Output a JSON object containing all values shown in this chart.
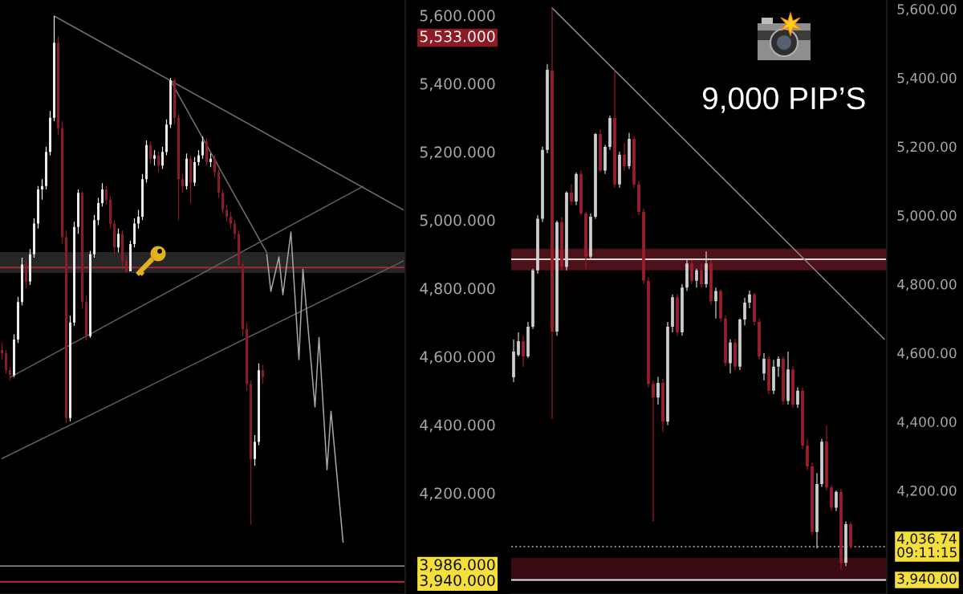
{
  "chart_data": [
    {
      "type": "candlestick",
      "tick_labels": "y",
      "categories": [
        null,
        null,
        null,
        null,
        null,
        null,
        null,
        null,
        null,
        null,
        null,
        null,
        null,
        null,
        null,
        null,
        null,
        null,
        null,
        null,
        null,
        null,
        null,
        null,
        null,
        null,
        null,
        null,
        null,
        null,
        null,
        null,
        null,
        null,
        null,
        null,
        null,
        null,
        null,
        null,
        null,
        null,
        null,
        null,
        null,
        null,
        null,
        null,
        null,
        null,
        null,
        null,
        null,
        null,
        null,
        null,
        null,
        null,
        null,
        null,
        null,
        null,
        null,
        null,
        null,
        null,
        null,
        null,
        null,
        null,
        null,
        null,
        null,
        null,
        null,
        null,
        null,
        null,
        null,
        null,
        null,
        null,
        null,
        null,
        null,
        null,
        null,
        null,
        null,
        null,
        null,
        null,
        null,
        null,
        null,
        null,
        null,
        null,
        null,
        null,
        null
      ],
      "ohlc": [
        [
          4620,
          4640,
          4590,
          4609
        ],
        [
          4609,
          4620,
          4550,
          4560
        ],
        [
          4560,
          4570,
          4530,
          4545
        ],
        [
          4545,
          4665,
          4540,
          4650
        ],
        [
          4650,
          4775,
          4640,
          4760
        ],
        [
          4760,
          4890,
          4750,
          4870
        ],
        [
          4870,
          4885,
          4800,
          4820
        ],
        [
          4820,
          4915,
          4810,
          4900
        ],
        [
          4900,
          5005,
          4890,
          4990
        ],
        [
          4990,
          5100,
          4975,
          5090
        ],
        [
          5090,
          5120,
          5060,
          5100
        ],
        [
          5100,
          5215,
          5090,
          5200
        ],
        [
          5200,
          5320,
          5190,
          5300
        ],
        [
          5300,
          5598,
          5290,
          5520
        ],
        [
          5520,
          5540,
          5250,
          5270
        ],
        [
          5270,
          5290,
          4930,
          4950
        ],
        [
          4950,
          4970,
          4405,
          4420
        ],
        [
          4420,
          4720,
          4410,
          4700
        ],
        [
          4700,
          4995,
          4690,
          4980
        ],
        [
          4980,
          5090,
          4960,
          5080
        ],
        [
          5080,
          5085,
          4740,
          4760
        ],
        [
          4760,
          4780,
          4650,
          4660
        ],
        [
          4660,
          4910,
          4655,
          4900
        ],
        [
          4900,
          5015,
          4890,
          5000
        ],
        [
          5000,
          5065,
          4985,
          5050
        ],
        [
          5050,
          5108,
          5040,
          5090
        ],
        [
          5090,
          5100,
          5045,
          5060
        ],
        [
          5060,
          5070,
          4975,
          4990
        ],
        [
          4990,
          5000,
          4900,
          4920
        ],
        [
          4920,
          4975,
          4905,
          4960
        ],
        [
          4960,
          4970,
          4865,
          4880
        ],
        [
          4880,
          4895,
          4845,
          4850
        ],
        [
          4850,
          4940,
          4850,
          4930
        ],
        [
          4930,
          5005,
          4920,
          4990
        ],
        [
          4990,
          5030,
          4975,
          5010
        ],
        [
          5010,
          5135,
          5000,
          5120
        ],
        [
          5120,
          5233,
          5110,
          5220
        ],
        [
          5220,
          5230,
          5165,
          5180
        ],
        [
          5180,
          5205,
          5160,
          5190
        ],
        [
          5190,
          5200,
          5140,
          5160
        ],
        [
          5160,
          5215,
          5150,
          5200
        ],
        [
          5200,
          5295,
          5190,
          5280
        ],
        [
          5280,
          5417,
          5270,
          5410
        ],
        [
          5410,
          5415,
          5280,
          5300
        ],
        [
          5300,
          5310,
          5000,
          5120
        ],
        [
          5120,
          5135,
          5080,
          5100
        ],
        [
          5100,
          5195,
          5090,
          5180
        ],
        [
          5180,
          5190,
          5050,
          5110
        ],
        [
          5110,
          5185,
          5100,
          5170
        ],
        [
          5170,
          5205,
          5160,
          5190
        ],
        [
          5190,
          5245,
          5180,
          5230
        ],
        [
          5230,
          5240,
          5160,
          5170
        ],
        [
          5170,
          5195,
          5155,
          5180
        ],
        [
          5180,
          5190,
          5125,
          5140
        ],
        [
          5140,
          5150,
          5065,
          5080
        ],
        [
          5080,
          5090,
          5020,
          5030
        ],
        [
          5030,
          5045,
          4995,
          5010
        ],
        [
          5010,
          5025,
          4975,
          4990
        ],
        [
          4990,
          5000,
          4945,
          4960
        ],
        [
          4960,
          4970,
          4860,
          4870
        ],
        [
          4870,
          4880,
          4660,
          4680
        ],
        [
          4680,
          4700,
          4500,
          4520
        ],
        [
          4520,
          4530,
          4108,
          4300
        ],
        [
          4300,
          4370,
          4280,
          4350
        ],
        [
          4350,
          4580,
          4340,
          4560
        ],
        [
          4560,
          4575,
          4520,
          4540
        ],
        null,
        null,
        null,
        null,
        null,
        null,
        null,
        null,
        null,
        null,
        null,
        null,
        null,
        null,
        null,
        null,
        null,
        null,
        null,
        null,
        null,
        null,
        null,
        null,
        null,
        null,
        null,
        null,
        null,
        null,
        null,
        null,
        null,
        null,
        null
      ],
      "colors": [
        "#8b1a2a",
        "#8b1a2a",
        "#8b1a2a",
        "#ececec",
        "#ececec",
        "#ececec",
        "#8b1a2a",
        "#ececec",
        "#ececec",
        "#ececec",
        "#ececec",
        "#ececec",
        "#ececec",
        "#ececec",
        "#8b1a2a",
        "#8b1a2a",
        "#8b1a2a",
        "#ececec",
        "#ececec",
        "#ececec",
        "#8b1a2a",
        "#8b1a2a",
        "#ececec",
        "#ececec",
        "#ececec",
        "#ececec",
        "#8b1a2a",
        "#8b1a2a",
        "#8b1a2a",
        "#ececec",
        "#8b1a2a",
        "#8b1a2a",
        "#ececec",
        "#ececec",
        "#ececec",
        "#ececec",
        "#ececec",
        "#8b1a2a",
        "#ececec",
        "#8b1a2a",
        "#ececec",
        "#ececec",
        "#ececec",
        "#8b1a2a",
        "#8b1a2a",
        "#8b1a2a",
        "#ececec",
        "#8b1a2a",
        "#ececec",
        "#ececec",
        "#ececec",
        "#8b1a2a",
        "#ececec",
        "#8b1a2a",
        "#8b1a2a",
        "#8b1a2a",
        "#8b1a2a",
        "#8b1a2a",
        "#8b1a2a",
        "#8b1a2a",
        "#8b1a2a",
        "#8b1a2a",
        "#8b1a2a",
        "#ececec",
        "#ececec",
        "#8b1a2a",
        null,
        null,
        null,
        null,
        null,
        null,
        null,
        null,
        null,
        null,
        null,
        null,
        null,
        null,
        null,
        null,
        null,
        null,
        null,
        null,
        null,
        null,
        null,
        null,
        null,
        null,
        null,
        null,
        null,
        null,
        null,
        null,
        null,
        null,
        null
      ],
      "series": [
        {
          "type": "line",
          "color": "#707070",
          "values": [
            null,
            null,
            null,
            null,
            null,
            null,
            null,
            null,
            null,
            null,
            null,
            null,
            null,
            5598,
            null,
            null,
            null,
            null,
            null,
            null,
            null,
            null,
            null,
            null,
            null,
            null,
            null,
            null,
            null,
            null,
            null,
            null,
            null,
            null,
            null,
            null,
            null,
            null,
            null,
            null,
            null,
            null,
            null,
            null,
            null,
            null,
            null,
            null,
            null,
            null,
            null,
            null,
            null,
            null,
            null,
            null,
            null,
            null,
            null,
            null,
            null,
            null,
            null,
            null,
            null,
            null,
            null,
            null,
            null,
            null,
            null,
            null,
            null,
            null,
            null,
            null,
            null,
            null,
            null,
            null,
            null,
            null,
            null,
            null,
            null,
            null,
            null,
            null,
            null,
            null,
            null,
            null,
            null,
            null,
            null,
            null,
            null,
            null,
            null,
            null,
            5030
          ]
        },
        {
          "type": "line",
          "color": "#707070",
          "values": [
            null,
            null,
            null,
            null,
            null,
            null,
            null,
            null,
            null,
            null,
            null,
            null,
            null,
            null,
            null,
            null,
            null,
            null,
            null,
            null,
            null,
            null,
            null,
            null,
            null,
            null,
            null,
            null,
            null,
            null,
            null,
            null,
            null,
            null,
            null,
            null,
            null,
            null,
            null,
            null,
            null,
            null,
            5409,
            null,
            null,
            null,
            null,
            null,
            null,
            null,
            null,
            null,
            null,
            null,
            null,
            null,
            null,
            null,
            null,
            null,
            null,
            null,
            null,
            null,
            null,
            null,
            4904,
            null,
            null,
            null,
            null,
            null,
            null,
            null,
            null,
            null,
            null,
            null,
            null,
            null,
            null,
            null,
            null,
            null,
            null,
            null,
            null,
            null,
            null,
            null,
            null,
            null,
            null,
            null,
            null,
            null,
            null,
            null,
            null,
            null,
            null
          ]
        },
        {
          "type": "line",
          "color": "#5e5e5e",
          "values": [
            null,
            null,
            4539,
            null,
            null,
            null,
            null,
            null,
            null,
            null,
            null,
            null,
            null,
            null,
            null,
            null,
            null,
            null,
            null,
            null,
            null,
            null,
            null,
            null,
            null,
            null,
            null,
            null,
            null,
            null,
            null,
            null,
            null,
            null,
            null,
            null,
            null,
            null,
            null,
            null,
            null,
            null,
            null,
            null,
            null,
            null,
            null,
            null,
            null,
            null,
            null,
            null,
            null,
            null,
            null,
            null,
            null,
            null,
            null,
            null,
            null,
            null,
            null,
            null,
            null,
            null,
            null,
            null,
            null,
            null,
            null,
            null,
            null,
            null,
            null,
            null,
            null,
            null,
            null,
            null,
            null,
            null,
            null,
            null,
            null,
            null,
            null,
            null,
            null,
            null,
            5099,
            null,
            null,
            null,
            null,
            null,
            null,
            null,
            null,
            null,
            null
          ]
        },
        {
          "type": "line",
          "color": "#5e5e5e",
          "values": [
            4301,
            null,
            null,
            null,
            null,
            null,
            null,
            null,
            null,
            null,
            null,
            null,
            null,
            null,
            null,
            null,
            null,
            null,
            null,
            null,
            null,
            null,
            null,
            null,
            null,
            null,
            null,
            null,
            null,
            null,
            null,
            null,
            null,
            null,
            null,
            null,
            null,
            null,
            null,
            null,
            null,
            null,
            null,
            null,
            null,
            null,
            null,
            null,
            null,
            null,
            null,
            null,
            null,
            null,
            null,
            null,
            null,
            null,
            null,
            null,
            null,
            null,
            null,
            null,
            null,
            null,
            null,
            null,
            null,
            null,
            null,
            null,
            null,
            null,
            null,
            null,
            null,
            null,
            null,
            null,
            null,
            null,
            null,
            null,
            null,
            null,
            null,
            null,
            null,
            null,
            null,
            null,
            null,
            null,
            null,
            null,
            null,
            null,
            null,
            null,
            4880
          ]
        },
        {
          "type": "line",
          "color": "#a6a6a6",
          "values": [
            null,
            null,
            null,
            null,
            null,
            null,
            null,
            null,
            null,
            null,
            null,
            null,
            null,
            null,
            null,
            null,
            null,
            null,
            null,
            null,
            null,
            null,
            null,
            null,
            null,
            null,
            null,
            null,
            null,
            null,
            null,
            null,
            null,
            null,
            null,
            null,
            null,
            null,
            null,
            null,
            null,
            null,
            null,
            null,
            null,
            null,
            null,
            null,
            null,
            null,
            null,
            null,
            null,
            null,
            null,
            null,
            null,
            null,
            null,
            null,
            null,
            null,
            null,
            null,
            null,
            null,
            4899,
            4791,
            null,
            4892,
            4781,
            null,
            4965,
            null,
            4591,
            4856,
            null,
            null,
            4452,
            4656,
            null,
            4268,
            4440,
            null,
            null,
            4056,
            null,
            null,
            null,
            null,
            null,
            null,
            null,
            null,
            null,
            null,
            null,
            null,
            null,
            null,
            null
          ]
        }
      ],
      "ylim": [
        3904,
        5645
      ],
      "yticks": [
        {
          "value": 5600,
          "label": "5,600.000"
        },
        {
          "value": 5400,
          "label": "5,400.000"
        },
        {
          "value": 5200,
          "label": "5,200.000"
        },
        {
          "value": 5000,
          "label": "5,000.000"
        },
        {
          "value": 4800,
          "label": "4,800.000"
        },
        {
          "value": 4600,
          "label": "4,600.000"
        },
        {
          "value": 4400,
          "label": "4,400.000"
        },
        {
          "value": 4200,
          "label": "4,200.000"
        }
      ],
      "ref_lines": [
        {
          "axis": "y",
          "value": 4861,
          "color": "#a3293a"
        },
        {
          "axis": "y",
          "value": 3986,
          "label": "3,986.000",
          "color": "#808080"
        },
        {
          "axis": "y",
          "value": 3940,
          "label": "3,940.000",
          "color": "#b22f3f"
        }
      ],
      "bands": [
        {
          "axis": "y",
          "from": 4845,
          "to": 4906,
          "color": "#262626"
        }
      ],
      "annotations": [
        "5,533.000"
      ]
    },
    {
      "type": "candlestick",
      "tick_labels": "y",
      "categories": [
        null,
        null,
        null,
        null,
        null,
        null,
        null,
        null,
        null,
        null,
        null,
        null,
        null,
        null,
        null,
        null,
        null,
        null,
        null,
        null,
        null,
        null,
        null,
        null,
        null,
        null,
        null,
        null,
        null,
        null,
        null,
        null,
        null,
        null,
        null,
        null,
        null,
        null,
        null,
        null,
        null,
        null,
        null,
        null,
        null,
        null,
        null,
        null,
        null,
        null,
        null,
        null,
        null,
        null,
        null,
        null,
        null,
        null,
        null,
        null,
        null,
        null,
        null,
        null,
        null,
        null,
        null,
        null,
        null,
        null,
        null,
        null,
        null,
        null,
        null,
        null,
        null,
        null
      ],
      "ohlc": [
        [
          4529,
          4639,
          4515,
          4604
        ],
        [
          4594,
          4660,
          4590,
          4634
        ],
        [
          4634,
          4650,
          4560,
          4590
        ],
        [
          4590,
          4690,
          4585,
          4676
        ],
        [
          4676,
          4845,
          4670,
          4840
        ],
        [
          4840,
          5000,
          4830,
          4990
        ],
        [
          4990,
          5200,
          4980,
          5190
        ],
        [
          5190,
          5440,
          5180,
          5423
        ],
        [
          5420,
          5603,
          4408,
          4662
        ],
        [
          4662,
          4985,
          4650,
          4980
        ],
        [
          4980,
          4995,
          4840,
          4850
        ],
        [
          4850,
          5070,
          4840,
          5066
        ],
        [
          5066,
          5090,
          5030,
          5040
        ],
        [
          5040,
          5125,
          5030,
          5120
        ],
        [
          5120,
          5130,
          5000,
          5005
        ],
        [
          5005,
          5010,
          4845,
          4880
        ],
        [
          4880,
          5005,
          4870,
          4996
        ],
        [
          4996,
          5240,
          4990,
          5236
        ],
        [
          5236,
          5250,
          5125,
          5130
        ],
        [
          5130,
          5205,
          5120,
          5199
        ],
        [
          5199,
          5290,
          5190,
          5283
        ],
        [
          5283,
          5423,
          5080,
          5090
        ],
        [
          5090,
          5185,
          5080,
          5176
        ],
        [
          5176,
          5210,
          5130,
          5143
        ],
        [
          5143,
          5240,
          5135,
          5222
        ],
        [
          5222,
          5230,
          5080,
          5090
        ],
        [
          5090,
          5100,
          5000,
          5010
        ],
        [
          5010,
          5020,
          4800,
          4810
        ],
        [
          4810,
          4820,
          4500,
          4510
        ],
        [
          4510,
          4520,
          4109,
          4470
        ],
        [
          4470,
          4530,
          4450,
          4513
        ],
        [
          4513,
          4525,
          4370,
          4400
        ],
        [
          4400,
          4690,
          4390,
          4676
        ],
        [
          4676,
          4770,
          4660,
          4762
        ],
        [
          4762,
          4770,
          4650,
          4660
        ],
        [
          4660,
          4800,
          4650,
          4790
        ],
        [
          4790,
          4870,
          4780,
          4860
        ],
        [
          4860,
          4870,
          4800,
          4810
        ],
        [
          4810,
          4845,
          4790,
          4840
        ],
        [
          4840,
          4860,
          4790,
          4800
        ],
        [
          4800,
          4895,
          4790,
          4860
        ],
        [
          4860,
          4870,
          4740,
          4750
        ],
        [
          4750,
          4790,
          4700,
          4780
        ],
        [
          4780,
          4785,
          4690,
          4700
        ],
        [
          4700,
          4710,
          4560,
          4570
        ],
        [
          4570,
          4640,
          4540,
          4630
        ],
        [
          4630,
          4640,
          4550,
          4560
        ],
        [
          4560,
          4700,
          4550,
          4697
        ],
        [
          4697,
          4760,
          4680,
          4746
        ],
        [
          4746,
          4781,
          4730,
          4770
        ],
        [
          4770,
          4775,
          4680,
          4690
        ],
        [
          4690,
          4700,
          4580,
          4590
        ],
        [
          4540,
          4600,
          4520,
          4583
        ],
        [
          4583,
          4590,
          4480,
          4490
        ],
        [
          4490,
          4580,
          4480,
          4560
        ],
        [
          4560,
          4590,
          4530,
          4583
        ],
        [
          4583,
          4590,
          4450,
          4460
        ],
        [
          4460,
          4604,
          4450,
          4552
        ],
        [
          4552,
          4560,
          4440,
          4450
        ],
        [
          4450,
          4500,
          4440,
          4490
        ],
        [
          4490,
          4500,
          4320,
          4330
        ],
        [
          4330,
          4350,
          4260,
          4270
        ],
        [
          4270,
          4280,
          4070,
          4079
        ],
        [
          4079,
          4250,
          4032,
          4219
        ],
        [
          4219,
          4350,
          4210,
          4342
        ],
        [
          4342,
          4389,
          4200,
          4209
        ],
        [
          4209,
          4215,
          4140,
          4150
        ],
        [
          4150,
          4200,
          4140,
          4196
        ],
        [
          4196,
          4205,
          3969,
          3990
        ],
        [
          3990,
          4110,
          3980,
          4102
        ],
        [
          4102,
          4108,
          4030,
          4037
        ],
        null,
        null,
        null,
        null,
        null,
        null,
        null
      ],
      "colors": [
        "#cfcfcf",
        "#cfcfcf",
        "#9b1e2e",
        "#cfcfcf",
        "#cfcfcf",
        "#cfcfcf",
        "#cfcfcf",
        "#cfcfcf",
        "#9b1e2e",
        "#cfcfcf",
        "#9b1e2e",
        "#cfcfcf",
        "#9b1e2e",
        "#cfcfcf",
        "#9b1e2e",
        "#9b1e2e",
        "#cfcfcf",
        "#cfcfcf",
        "#9b1e2e",
        "#cfcfcf",
        "#cfcfcf",
        "#9b1e2e",
        "#cfcfcf",
        "#9b1e2e",
        "#cfcfcf",
        "#9b1e2e",
        "#9b1e2e",
        "#9b1e2e",
        "#9b1e2e",
        "#9b1e2e",
        "#cfcfcf",
        "#9b1e2e",
        "#cfcfcf",
        "#cfcfcf",
        "#9b1e2e",
        "#cfcfcf",
        "#cfcfcf",
        "#9b1e2e",
        "#cfcfcf",
        "#9b1e2e",
        "#cfcfcf",
        "#9b1e2e",
        "#cfcfcf",
        "#9b1e2e",
        "#9b1e2e",
        "#cfcfcf",
        "#9b1e2e",
        "#cfcfcf",
        "#cfcfcf",
        "#cfcfcf",
        "#9b1e2e",
        "#9b1e2e",
        "#cfcfcf",
        "#9b1e2e",
        "#cfcfcf",
        "#cfcfcf",
        "#9b1e2e",
        "#cfcfcf",
        "#9b1e2e",
        "#cfcfcf",
        "#9b1e2e",
        "#9b1e2e",
        "#9b1e2e",
        "#cfcfcf",
        "#cfcfcf",
        "#9b1e2e",
        "#9b1e2e",
        "#cfcfcf",
        "#9b1e2e",
        "#cfcfcf",
        "#9b1e2e",
        null,
        null,
        null,
        null,
        null,
        null,
        null
      ],
      "series": [
        {
          "type": "line",
          "color": "#8a8a8a",
          "values": [
            null,
            null,
            null,
            null,
            null,
            null,
            null,
            null,
            5603,
            null,
            null,
            null,
            null,
            null,
            null,
            null,
            null,
            null,
            null,
            null,
            null,
            null,
            null,
            null,
            null,
            null,
            null,
            null,
            null,
            null,
            null,
            null,
            null,
            null,
            null,
            null,
            null,
            null,
            null,
            null,
            null,
            null,
            null,
            null,
            null,
            null,
            null,
            null,
            null,
            null,
            null,
            null,
            null,
            null,
            null,
            null,
            null,
            null,
            null,
            null,
            null,
            null,
            null,
            null,
            null,
            null,
            null,
            null,
            null,
            null,
            null,
            null,
            null,
            null,
            null,
            null,
            null,
            4640
          ]
        }
      ],
      "ylim": [
        3899,
        5626
      ],
      "yticks": [
        {
          "value": 5600,
          "label": "5,600.00"
        },
        {
          "value": 5400,
          "label": "5,400.00"
        },
        {
          "value": 5200,
          "label": "5,200.00"
        },
        {
          "value": 5000,
          "label": "5,000.00"
        },
        {
          "value": 4800,
          "label": "4,800.00"
        },
        {
          "value": 4600,
          "label": "4,600.00"
        },
        {
          "value": 4400,
          "label": "4,400.00"
        },
        {
          "value": 4200,
          "label": "4,200.00"
        }
      ],
      "ref_lines": [
        {
          "axis": "y",
          "value": 4872,
          "color": "#d9d9d9"
        },
        {
          "axis": "y",
          "value": 4036.74,
          "label": "4,036.74\n09:11:15",
          "color": "#8a8a8a",
          "line_style": "dotted"
        },
        {
          "axis": "y",
          "value": 3940,
          "label": "3,940.00",
          "color": "#e6e6e6"
        }
      ],
      "bands": [
        {
          "axis": "y",
          "from": 4840,
          "to": 4903,
          "color": "#4d1119"
        },
        {
          "axis": "y",
          "from": 3940,
          "to": 4004,
          "color": "#3a0c12"
        }
      ],
      "annotations": [
        "9,000 PIP’S"
      ]
    }
  ]
}
